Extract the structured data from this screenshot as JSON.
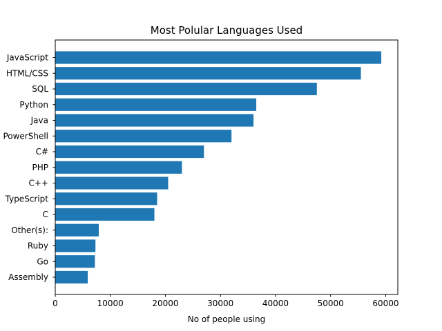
{
  "chart_data": {
    "type": "bar",
    "orientation": "horizontal",
    "title": "Most Polular Languages Used",
    "xlabel": "No of people using",
    "ylabel": "",
    "categories": [
      "Assembly",
      "Go",
      "Ruby",
      "Other(s):",
      "C",
      "TypeScript",
      "C++",
      "PHP",
      "C#",
      "PowerShell",
      "Java",
      "Python",
      "SQL",
      "HTML/CSS",
      "JavaScript"
    ],
    "values": [
      5900,
      7200,
      7300,
      7900,
      18000,
      18500,
      20500,
      23000,
      27000,
      32000,
      36000,
      36500,
      47500,
      55500,
      59200
    ],
    "xlim": [
      0,
      62200
    ],
    "xticks": [
      0,
      10000,
      20000,
      30000,
      40000,
      50000,
      60000
    ],
    "xtick_labels": [
      "0",
      "10000",
      "20000",
      "30000",
      "40000",
      "50000",
      "60000"
    ],
    "bar_color": "#1f77b4",
    "grid": false,
    "legend": "none"
  }
}
